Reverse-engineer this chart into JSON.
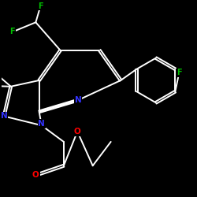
{
  "background_color": "#000000",
  "bond_color": "#ffffff",
  "atom_colors": {
    "N": "#3333ff",
    "O": "#ff0000",
    "F": "#00bb00"
  },
  "bond_width": 1.4,
  "figsize": [
    2.5,
    2.5
  ],
  "dpi": 100
}
